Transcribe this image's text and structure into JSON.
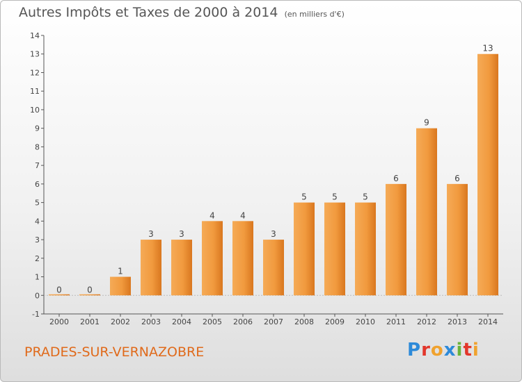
{
  "title": "Autres Impôts et Taxes de 2000 à 2014",
  "subtitle": "(en milliers d'€)",
  "commune": "PRADES-SUR-VERNAZOBRE",
  "brand": {
    "letters": [
      "P",
      "r",
      "o",
      "x",
      "i",
      "t",
      "i"
    ],
    "colors": [
      "#2d8ad9",
      "#e2362b",
      "#f0a22e",
      "#2d8ad9",
      "#69b43c",
      "#e2362b",
      "#f0a22e"
    ]
  },
  "chart_data": {
    "type": "bar",
    "categories": [
      "2000",
      "2001",
      "2002",
      "2003",
      "2004",
      "2005",
      "2006",
      "2007",
      "2008",
      "2009",
      "2010",
      "2011",
      "2012",
      "2013",
      "2014"
    ],
    "values": [
      0,
      0,
      1,
      3,
      3,
      4,
      4,
      3,
      5,
      5,
      5,
      6,
      9,
      6,
      13
    ],
    "ylim": [
      -1,
      14
    ],
    "yticks": [
      -1,
      0,
      1,
      2,
      3,
      4,
      5,
      6,
      7,
      8,
      9,
      10,
      11,
      12,
      13,
      14
    ],
    "grid": false,
    "bar_color": "#f19a3e"
  }
}
